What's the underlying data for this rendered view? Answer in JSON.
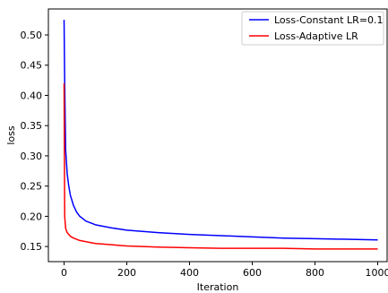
{
  "chart_data": {
    "type": "line",
    "xlabel": "Iteration",
    "ylabel": "loss",
    "xlim": [
      -50,
      1030
    ],
    "ylim": [
      0.125,
      0.543
    ],
    "xticks": [
      0,
      200,
      400,
      600,
      800,
      1000
    ],
    "yticks": [
      0.15,
      0.2,
      0.25,
      0.3,
      0.35,
      0.4,
      0.45,
      0.5
    ],
    "xtick_labels": [
      "0",
      "200",
      "400",
      "600",
      "800",
      "1000"
    ],
    "ytick_labels": [
      "0.15",
      "0.20",
      "0.25",
      "0.30",
      "0.35",
      "0.40",
      "0.45",
      "0.50"
    ],
    "grid": false,
    "legend_position": "top-right",
    "series": [
      {
        "name": "Loss-Constant LR=0.1",
        "color": "#0000ff",
        "x": [
          0,
          2,
          5,
          10,
          15,
          20,
          30,
          40,
          50,
          70,
          100,
          150,
          200,
          300,
          400,
          500,
          600,
          700,
          800,
          900,
          1000
        ],
        "y": [
          0.525,
          0.42,
          0.31,
          0.27,
          0.25,
          0.235,
          0.218,
          0.207,
          0.2,
          0.192,
          0.186,
          0.181,
          0.177,
          0.173,
          0.17,
          0.168,
          0.166,
          0.164,
          0.163,
          0.162,
          0.161
        ]
      },
      {
        "name": "Loss-Adaptive LR",
        "color": "#ff0000",
        "x": [
          0,
          2,
          5,
          10,
          20,
          30,
          50,
          100,
          200,
          300,
          400,
          500,
          600,
          700,
          800,
          900,
          1000
        ],
        "y": [
          0.42,
          0.2,
          0.18,
          0.173,
          0.167,
          0.164,
          0.16,
          0.155,
          0.151,
          0.149,
          0.148,
          0.147,
          0.147,
          0.147,
          0.146,
          0.146,
          0.146
        ]
      }
    ]
  }
}
